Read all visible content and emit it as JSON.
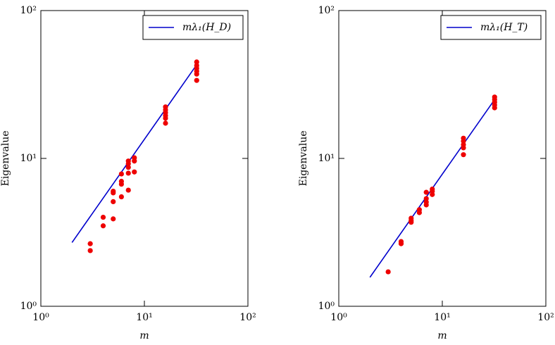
{
  "chart_data": [
    {
      "type": "scatter",
      "xlabel": "m",
      "ylabel": "Eigenvalue",
      "log_x": true,
      "log_y": true,
      "legend": "upper right",
      "xlim": [
        1,
        100
      ],
      "ylim": [
        1,
        100
      ],
      "xticks": [
        {
          "value": 1,
          "label": "10⁰"
        },
        {
          "value": 10,
          "label": "10¹"
        },
        {
          "value": 100,
          "label": "10²"
        }
      ],
      "yticks": [
        {
          "value": 1,
          "label": "10⁰"
        },
        {
          "value": 10,
          "label": "10¹"
        },
        {
          "value": 100,
          "label": "10²"
        }
      ],
      "series": [
        {
          "name": "mλ₁(H_D)",
          "color": "#0000cc",
          "mode": "line",
          "x": [
            2,
            32
          ],
          "values": [
            2.7,
            43
          ]
        },
        {
          "color": "#ee0000",
          "mode": "markers",
          "x": [
            3,
            3,
            4,
            4,
            5,
            5,
            5,
            5,
            6,
            6,
            6,
            6,
            7,
            7,
            7,
            7,
            7,
            8,
            8,
            8,
            16,
            16,
            16,
            16,
            16,
            16,
            32,
            32,
            32,
            32,
            32,
            32
          ],
          "values": [
            2.65,
            2.38,
            4.0,
            3.5,
            6.0,
            5.85,
            5.1,
            3.9,
            7.85,
            7.0,
            6.7,
            5.5,
            9.6,
            9.2,
            8.7,
            7.95,
            6.1,
            10.1,
            9.6,
            8.1,
            22.3,
            21.3,
            20.4,
            19.5,
            18.7,
            17.3,
            44.9,
            42.5,
            40.7,
            38.9,
            37.2,
            33.7
          ]
        }
      ]
    },
    {
      "type": "scatter",
      "xlabel": "m",
      "ylabel": "Eigenvalue",
      "log_x": true,
      "log_y": true,
      "legend": "upper right",
      "xlim": [
        1,
        100
      ],
      "ylim": [
        1,
        100
      ],
      "xticks": [
        {
          "value": 1,
          "label": "10⁰"
        },
        {
          "value": 10,
          "label": "10¹"
        },
        {
          "value": 100,
          "label": "10²"
        }
      ],
      "yticks": [
        {
          "value": 1,
          "label": "10⁰"
        },
        {
          "value": 10,
          "label": "10¹"
        },
        {
          "value": 100,
          "label": "10²"
        }
      ],
      "series": [
        {
          "name": "mλ₁(H_T)",
          "color": "#0000cc",
          "mode": "line",
          "x": [
            2,
            32
          ],
          "values": [
            1.57,
            25
          ]
        },
        {
          "color": "#ee0000",
          "mode": "markers",
          "x": [
            3,
            4,
            4,
            5,
            5,
            5,
            6,
            6,
            7,
            7,
            7,
            7,
            8,
            8,
            8,
            16,
            16,
            16,
            16,
            16,
            32,
            32,
            32,
            32,
            32
          ],
          "values": [
            1.71,
            2.74,
            2.65,
            3.94,
            3.8,
            3.7,
            4.5,
            4.3,
            5.9,
            5.35,
            5.07,
            4.85,
            6.2,
            6.0,
            5.7,
            13.7,
            13.1,
            12.4,
            11.8,
            10.6,
            26,
            25,
            24,
            23,
            22
          ]
        }
      ]
    }
  ]
}
